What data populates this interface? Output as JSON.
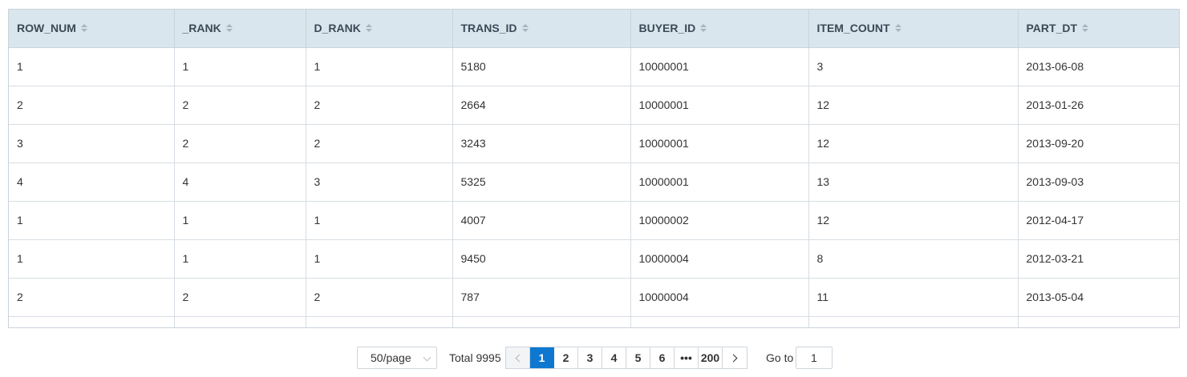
{
  "table": {
    "columns": [
      "ROW_NUM",
      "_RANK",
      "D_RANK",
      "TRANS_ID",
      "BUYER_ID",
      "ITEM_COUNT",
      "PART_DT"
    ],
    "rows": [
      [
        "1",
        "1",
        "1",
        "5180",
        "10000001",
        "3",
        "2013-06-08"
      ],
      [
        "2",
        "2",
        "2",
        "2664",
        "10000001",
        "12",
        "2013-01-26"
      ],
      [
        "3",
        "2",
        "2",
        "3243",
        "10000001",
        "12",
        "2013-09-20"
      ],
      [
        "4",
        "4",
        "3",
        "5325",
        "10000001",
        "13",
        "2013-09-03"
      ],
      [
        "1",
        "1",
        "1",
        "4007",
        "10000002",
        "12",
        "2012-04-17"
      ],
      [
        "1",
        "1",
        "1",
        "9450",
        "10000004",
        "8",
        "2012-03-21"
      ],
      [
        "2",
        "2",
        "2",
        "787",
        "10000004",
        "11",
        "2013-05-04"
      ],
      [
        "",
        "",
        "",
        "",
        "",
        "",
        ""
      ]
    ]
  },
  "pagination": {
    "page_size": "50/page",
    "total": "Total 9995",
    "pages": [
      "1",
      "2",
      "3",
      "4",
      "5",
      "6",
      "•••",
      "200"
    ],
    "current_page": "1",
    "goto_label": "Go to",
    "goto_value": "1"
  },
  "colors": {
    "header_bg": "#d9e6ee",
    "active_page": "#0e78d1"
  }
}
